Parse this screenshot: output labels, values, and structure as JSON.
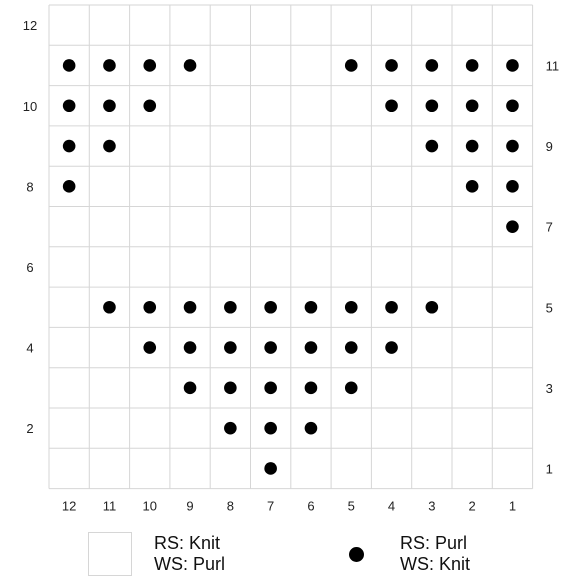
{
  "chart_data": {
    "type": "knitting-chart",
    "columns": 12,
    "rows": 12,
    "column_labels": [
      "12",
      "11",
      "10",
      "9",
      "8",
      "7",
      "6",
      "5",
      "4",
      "3",
      "2",
      "1"
    ],
    "left_row_labels": [
      "12",
      "10",
      "8",
      "6",
      "4",
      "2"
    ],
    "right_row_labels": [
      "11",
      "9",
      "7",
      "5",
      "3",
      "1"
    ],
    "purl_stitches": [
      {
        "row": 11,
        "cols": [
          12,
          11,
          10,
          9,
          5,
          4,
          3,
          2,
          1
        ]
      },
      {
        "row": 10,
        "cols": [
          12,
          11,
          10,
          4,
          3,
          2,
          1
        ]
      },
      {
        "row": 9,
        "cols": [
          12,
          11,
          3,
          2,
          1
        ]
      },
      {
        "row": 8,
        "cols": [
          12,
          2,
          1
        ]
      },
      {
        "row": 7,
        "cols": [
          1
        ]
      },
      {
        "row": 5,
        "cols": [
          11,
          10,
          9,
          8,
          7,
          6,
          5,
          4,
          3
        ]
      },
      {
        "row": 4,
        "cols": [
          10,
          9,
          8,
          7,
          6,
          5,
          4
        ]
      },
      {
        "row": 3,
        "cols": [
          9,
          8,
          7,
          6,
          5
        ]
      },
      {
        "row": 2,
        "cols": [
          8,
          7,
          6
        ]
      },
      {
        "row": 1,
        "cols": [
          7
        ]
      }
    ]
  },
  "legend": {
    "knit": {
      "line1": "RS: Knit",
      "line2": "WS: Purl"
    },
    "purl": {
      "line1": "RS: Purl",
      "line2": "WS: Knit"
    }
  },
  "colors": {
    "grid": "#d6d6d6",
    "dot": "#000000",
    "text": "#222222"
  }
}
